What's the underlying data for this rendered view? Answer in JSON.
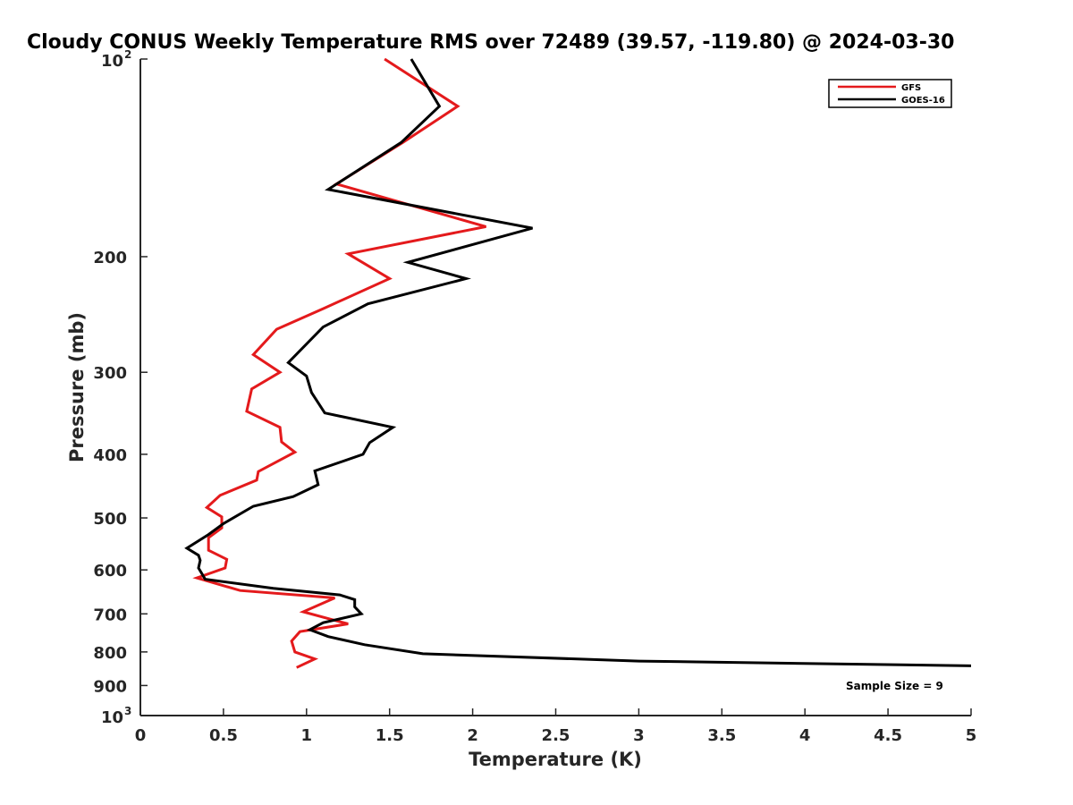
{
  "chart_data": {
    "type": "line",
    "title": "Cloudy CONUS Weekly Temperature RMS over 72489 (39.57, -119.80) @ 2024-03-30",
    "xlabel": "Temperature (K)",
    "ylabel": "Pressure (mb)",
    "xlim": [
      0,
      5
    ],
    "ylim": [
      100,
      1000
    ],
    "y_scale": "log",
    "y_reversed": true,
    "grid": false,
    "legend_position": "top-right",
    "x_ticks": [
      "0",
      "0.5",
      "1",
      "1.5",
      "2",
      "2.5",
      "3",
      "3.5",
      "4",
      "4.5",
      "5"
    ],
    "y_ticks": [
      {
        "value": 100,
        "label": "10",
        "exp": "2"
      },
      {
        "value": 200,
        "label": "200",
        "exp": ""
      },
      {
        "value": 300,
        "label": "300",
        "exp": ""
      },
      {
        "value": 400,
        "label": "400",
        "exp": ""
      },
      {
        "value": 500,
        "label": "500",
        "exp": ""
      },
      {
        "value": 600,
        "label": "600",
        "exp": ""
      },
      {
        "value": 700,
        "label": "700",
        "exp": ""
      },
      {
        "value": 800,
        "label": "800",
        "exp": ""
      },
      {
        "value": 900,
        "label": "900",
        "exp": ""
      },
      {
        "value": 1000,
        "label": "10",
        "exp": "3"
      }
    ],
    "series": [
      {
        "name": "GFS",
        "color": "#e41a1c",
        "points": [
          [
            1.47,
            100
          ],
          [
            1.91,
            118
          ],
          [
            1.58,
            134
          ],
          [
            1.18,
            155
          ],
          [
            2.08,
            180
          ],
          [
            1.25,
            198
          ],
          [
            1.5,
            216
          ],
          [
            1.1,
            240
          ],
          [
            0.82,
            258
          ],
          [
            0.68,
            282
          ],
          [
            0.84,
            300
          ],
          [
            0.67,
            318
          ],
          [
            0.64,
            344
          ],
          [
            0.84,
            364
          ],
          [
            0.85,
            383
          ],
          [
            0.93,
            397
          ],
          [
            0.71,
            425
          ],
          [
            0.7,
            438
          ],
          [
            0.48,
            462
          ],
          [
            0.4,
            482
          ],
          [
            0.49,
            498
          ],
          [
            0.49,
            518
          ],
          [
            0.41,
            536
          ],
          [
            0.41,
            560
          ],
          [
            0.52,
            578
          ],
          [
            0.51,
            596
          ],
          [
            0.34,
            617
          ],
          [
            0.6,
            645
          ],
          [
            1.17,
            662
          ],
          [
            0.98,
            695
          ],
          [
            1.15,
            714
          ],
          [
            1.25,
            725
          ],
          [
            0.96,
            745
          ],
          [
            0.91,
            770
          ],
          [
            0.93,
            800
          ],
          [
            1.05,
            820
          ],
          [
            0.94,
            845
          ]
        ]
      },
      {
        "name": "GOES-16",
        "color": "#000000",
        "points": [
          [
            1.63,
            100
          ],
          [
            1.8,
            118
          ],
          [
            1.57,
            134
          ],
          [
            1.13,
            158
          ],
          [
            2.36,
            181
          ],
          [
            1.61,
            204
          ],
          [
            1.96,
            216
          ],
          [
            1.37,
            236
          ],
          [
            1.1,
            256
          ],
          [
            0.89,
            290
          ],
          [
            1.0,
            304
          ],
          [
            1.03,
            322
          ],
          [
            1.11,
            346
          ],
          [
            1.52,
            364
          ],
          [
            1.38,
            384
          ],
          [
            1.34,
            400
          ],
          [
            1.05,
            424
          ],
          [
            1.07,
            445
          ],
          [
            0.92,
            464
          ],
          [
            0.68,
            480
          ],
          [
            0.5,
            510
          ],
          [
            0.41,
            530
          ],
          [
            0.28,
            556
          ],
          [
            0.35,
            570
          ],
          [
            0.36,
            580
          ],
          [
            0.35,
            596
          ],
          [
            0.39,
            620
          ],
          [
            0.8,
            640
          ],
          [
            1.2,
            655
          ],
          [
            1.29,
            666
          ],
          [
            1.29,
            683
          ],
          [
            1.33,
            700
          ],
          [
            1.1,
            722
          ],
          [
            1.02,
            740
          ],
          [
            1.13,
            758
          ],
          [
            1.35,
            780
          ],
          [
            1.7,
            805
          ],
          [
            3.0,
            826
          ],
          [
            5.0,
            840
          ]
        ]
      }
    ],
    "annotations": {
      "sample_size": "Sample Size = 9"
    }
  }
}
